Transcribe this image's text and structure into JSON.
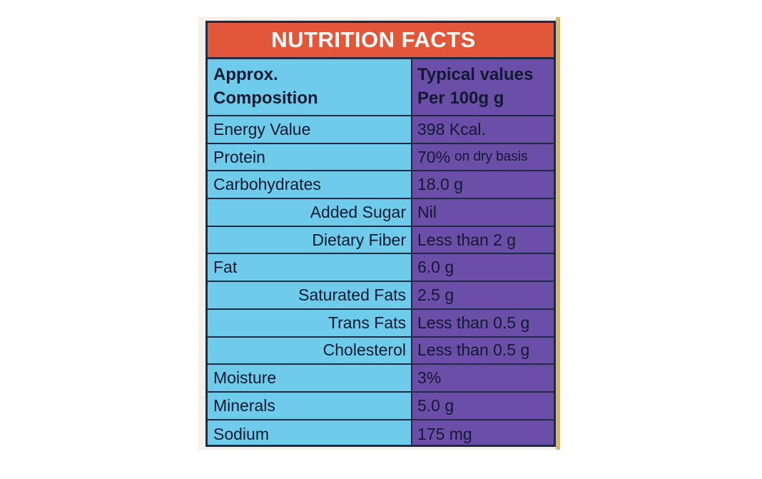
{
  "title": "NUTRITION FACTS",
  "header": {
    "left_line1": "Approx.",
    "left_line2": "Composition",
    "right_line1": "Typical values",
    "right_line2": "Per 100g g"
  },
  "rows": [
    {
      "name": "Energy Value",
      "value": "398 Kcal.",
      "indent": false
    },
    {
      "name": "Protein",
      "value": "70%",
      "value_suffix": "on dry basis",
      "indent": false
    },
    {
      "name": "Carbohydrates",
      "value": "18.0 g",
      "indent": false
    },
    {
      "name": "Added Sugar",
      "value": "Nil",
      "indent": true
    },
    {
      "name": "Dietary Fiber",
      "value": "Less than 2 g",
      "indent": true
    },
    {
      "name": "Fat",
      "value": "6.0 g",
      "indent": false
    },
    {
      "name": "Saturated Fats",
      "value": "2.5 g",
      "indent": true
    },
    {
      "name": "Trans Fats",
      "value": "Less than 0.5 g",
      "indent": true
    },
    {
      "name": "Cholesterol",
      "value": "Less than 0.5 g",
      "indent": true
    },
    {
      "name": "Moisture",
      "value": "3%",
      "indent": false
    },
    {
      "name": "Minerals",
      "value": "5.0 g",
      "indent": false
    },
    {
      "name": "Sodium",
      "value": "175 mg",
      "indent": false
    }
  ],
  "colors": {
    "header_bg": "#e2563a",
    "left_column_bg": "#6ecbea",
    "right_column_bg": "#6a4ea8",
    "text": "#121a33",
    "border": "#1e2a46"
  }
}
